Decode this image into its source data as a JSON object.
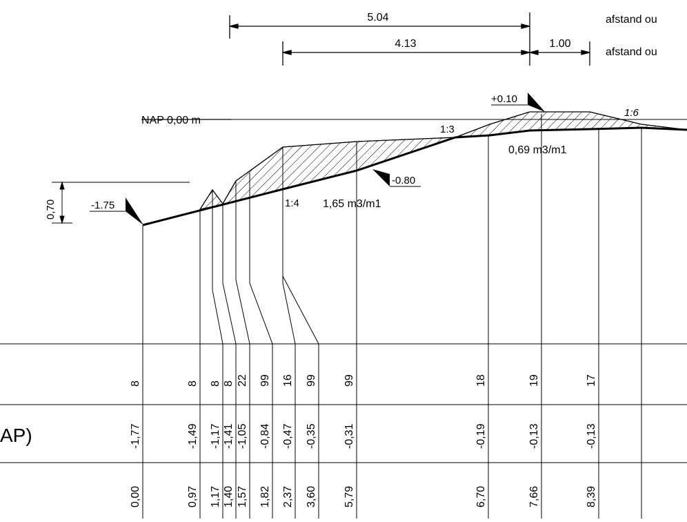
{
  "dimensions": {
    "top_value": "5.04",
    "mid_value": "4.13",
    "right_value": "1.00",
    "label_top": "afstand ou",
    "label_mid": "afstand ou"
  },
  "levels": {
    "nap": "NAP 0,00 m",
    "crest": "+0.10",
    "toe": "-1.75",
    "inner": "-0.80",
    "height_dim": "0,70"
  },
  "slopes": {
    "s1": "1:3",
    "s2": "1:4",
    "s3": "1:6"
  },
  "volumes": {
    "v_main": "1,65 m3/m1",
    "v_crest": "0,69 m3/m1"
  },
  "table": {
    "row2_label": "AP)",
    "columns": [
      {
        "code": "8",
        "level": "-1,77",
        "dist": "0,00"
      },
      {
        "code": "8",
        "level": "-1,49",
        "dist": "0,97"
      },
      {
        "code": "8",
        "level": "-1,17",
        "dist": "1,17"
      },
      {
        "code": "8",
        "level": "-1,41",
        "dist": "1,40"
      },
      {
        "code": "22",
        "level": "-1,05",
        "dist": "1,57"
      },
      {
        "code": "99",
        "level": "-0,84",
        "dist": "1,82"
      },
      {
        "code": "16",
        "level": "-0,47",
        "dist": "2,37"
      },
      {
        "code": "99",
        "level": "-0,35",
        "dist": "3,60"
      },
      {
        "code": "99",
        "level": "-0,31",
        "dist": "5,79"
      },
      {
        "code": "18",
        "level": "-0,19",
        "dist": "6,70"
      },
      {
        "code": "19",
        "level": "-0,13",
        "dist": "7,66"
      },
      {
        "code": "17",
        "level": "-0,13",
        "dist": "8,39"
      }
    ]
  }
}
